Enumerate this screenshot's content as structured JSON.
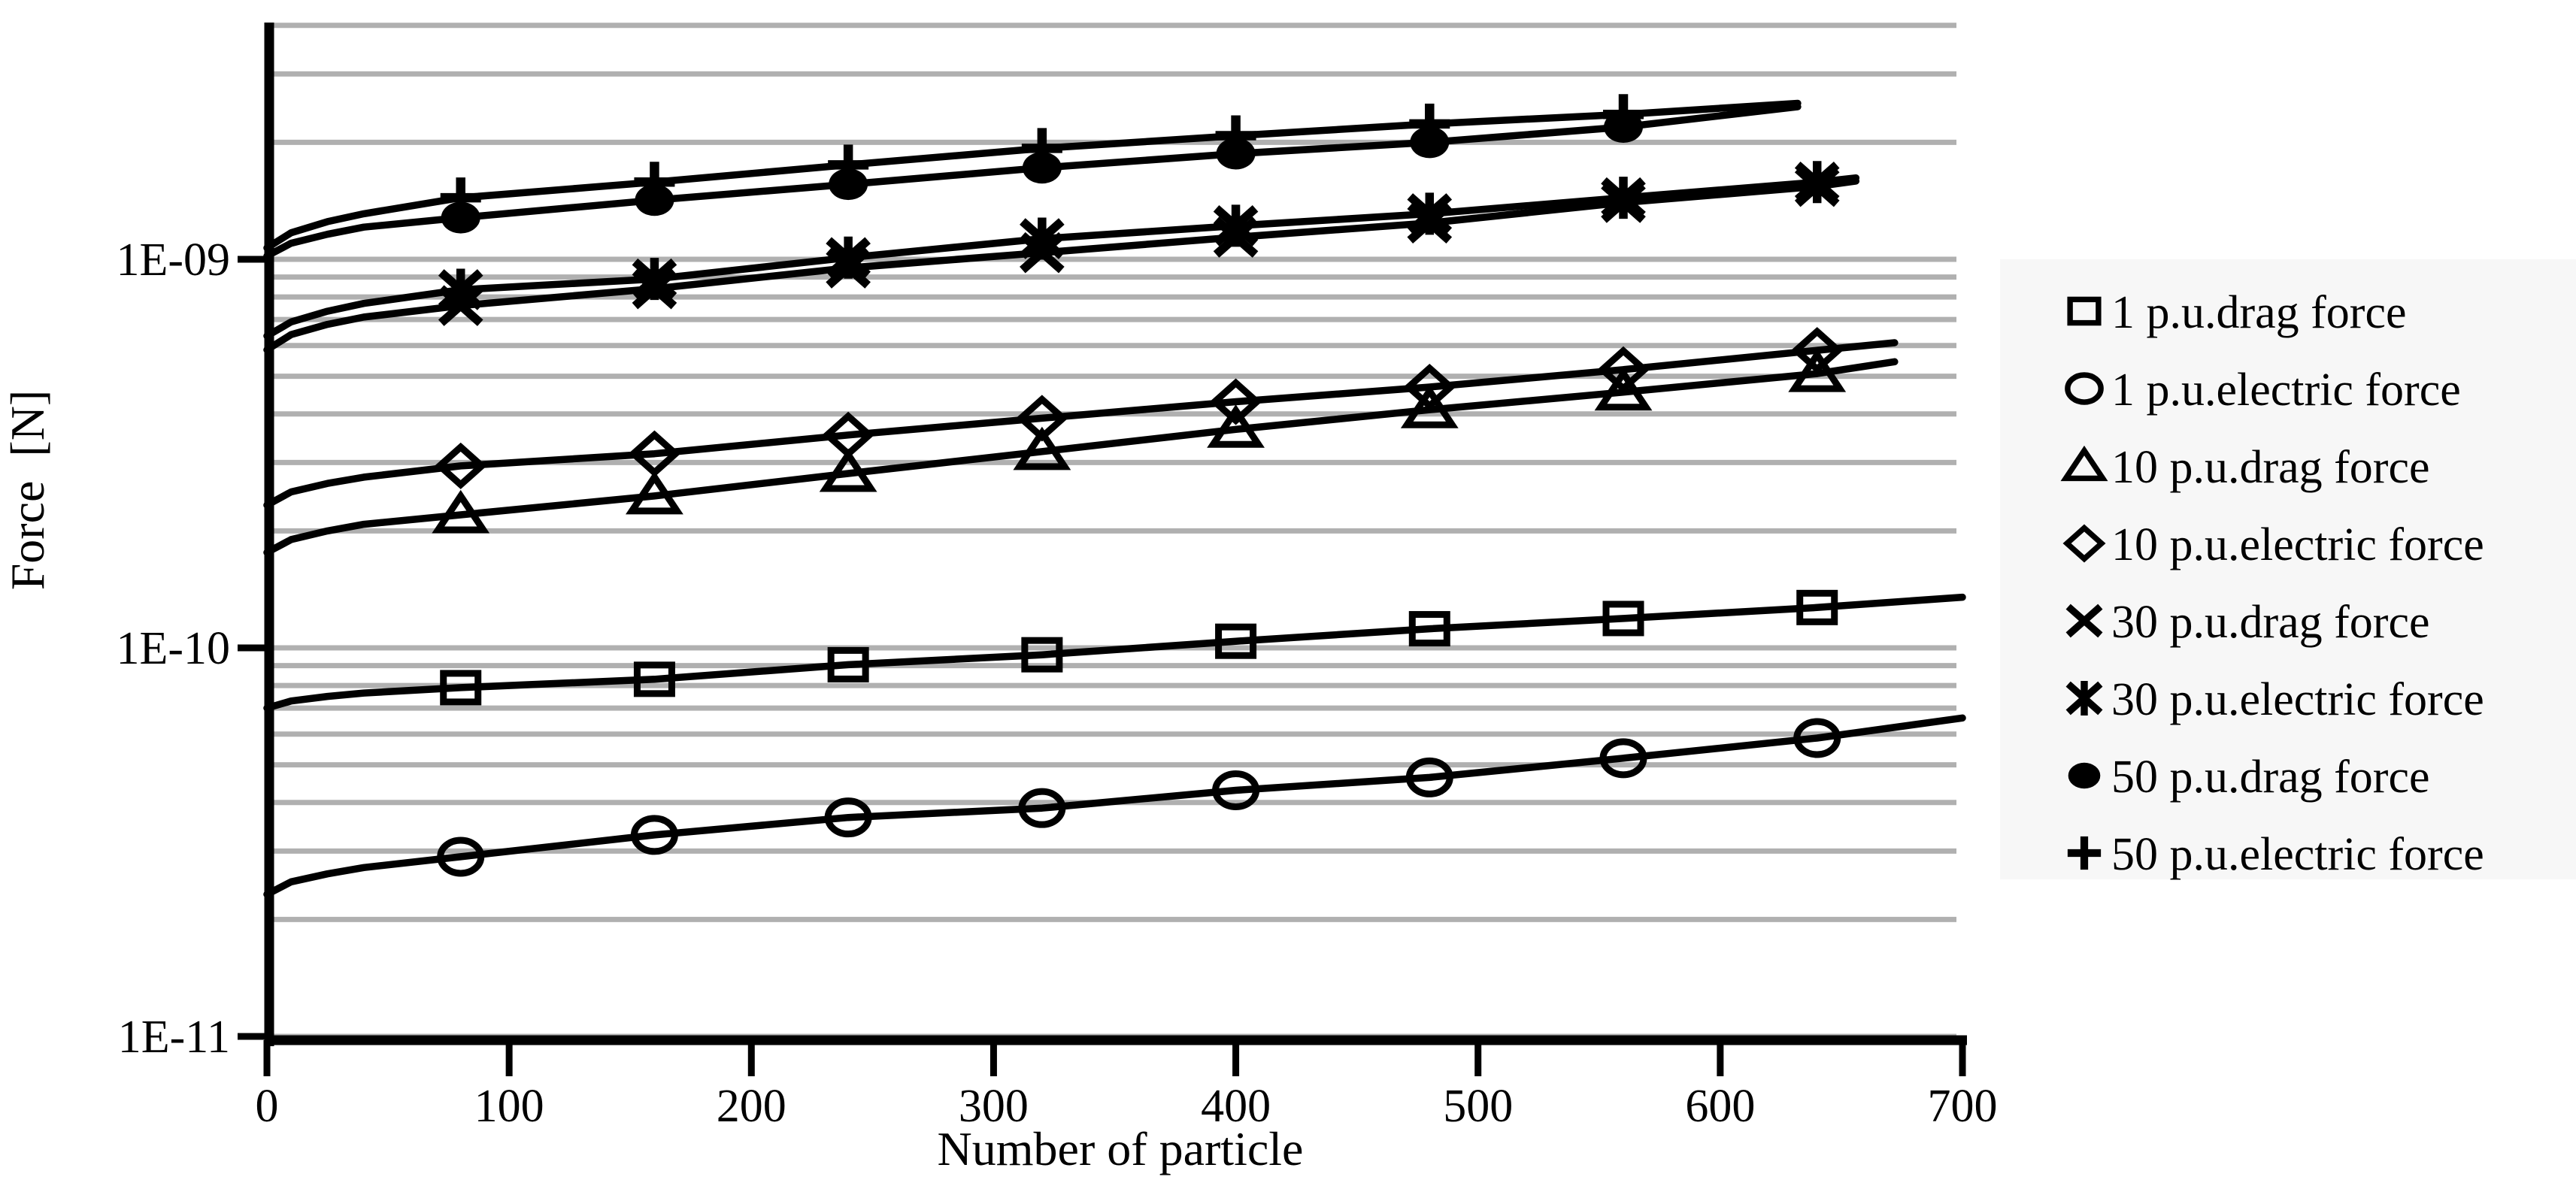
{
  "colors": {
    "background": "#ffffff",
    "line": "#000000",
    "grid": "#b0b0b0",
    "axis": "#000000",
    "text": "#000000",
    "legend_bg": "#f7f7f7"
  },
  "chart_data": {
    "type": "line",
    "title": "",
    "xlabel": "Number of particle",
    "ylabel": "Force  [N]",
    "x_axis": {
      "min": 0,
      "max": 700,
      "tick_step": 100,
      "tick_labels": [
        "0",
        "100",
        "200",
        "300",
        "400",
        "500",
        "600",
        "700"
      ]
    },
    "y_axis": {
      "scale": "log",
      "min": 1e-11,
      "max": 4.1e-09,
      "tick_labels": [
        "1E-09",
        "1E-10",
        "1E-11"
      ],
      "ticks": [
        {
          "label": "1E-09",
          "value": 1e-09
        },
        {
          "label": "1E-10",
          "value": 1e-10
        },
        {
          "label": "1E-11",
          "value": 1e-11
        }
      ],
      "minor_grid": true
    },
    "grid": "horizontal-log-minor",
    "legend_position": "right",
    "series": [
      {
        "name": "1 p.u.drag force",
        "marker": "square",
        "x": [
          0,
          10,
          25,
          40,
          80,
          160,
          240,
          320,
          400,
          480,
          560,
          640,
          700
        ],
        "y": [
          7e-11,
          7.3e-11,
          7.5e-11,
          7.65e-11,
          7.9e-11,
          8.3e-11,
          9.05e-11,
          9.6e-11,
          1.04e-10,
          1.12e-10,
          1.19e-10,
          1.27e-10,
          1.35e-10
        ],
        "marker_xs": [
          80,
          160,
          240,
          320,
          400,
          480,
          560,
          640
        ]
      },
      {
        "name": "1 p.u.electric force",
        "marker": "circle",
        "x": [
          0,
          10,
          25,
          40,
          80,
          160,
          240,
          320,
          400,
          480,
          560,
          640,
          700
        ],
        "y": [
          2.32e-11,
          2.5e-11,
          2.62e-11,
          2.72e-11,
          2.9e-11,
          3.3e-11,
          3.66e-11,
          3.87e-11,
          4.3e-11,
          4.64e-11,
          5.2e-11,
          5.86e-11,
          6.6e-11
        ],
        "marker_xs": [
          80,
          160,
          240,
          320,
          400,
          480,
          560,
          640
        ]
      },
      {
        "name": "10 p.u.drag force",
        "marker": "triangle",
        "x": [
          0,
          10,
          25,
          40,
          80,
          160,
          240,
          320,
          400,
          480,
          560,
          640,
          672
        ],
        "y": [
          1.76e-10,
          1.9e-10,
          2e-10,
          2.08e-10,
          2.2e-10,
          2.46e-10,
          2.81e-10,
          3.2e-10,
          3.65e-10,
          4.1e-10,
          4.55e-10,
          5.08e-10,
          5.45e-10
        ],
        "marker_xs": [
          80,
          160,
          240,
          320,
          400,
          480,
          560,
          640
        ]
      },
      {
        "name": "10 p.u.electric force",
        "marker": "diamond",
        "x": [
          0,
          10,
          25,
          40,
          80,
          160,
          240,
          320,
          400,
          480,
          560,
          640,
          672
        ],
        "y": [
          2.33e-10,
          2.52e-10,
          2.65e-10,
          2.75e-10,
          2.94e-10,
          3.16e-10,
          3.53e-10,
          3.9e-10,
          4.3e-10,
          4.69e-10,
          5.2e-10,
          5.83e-10,
          6.1e-10
        ],
        "marker_xs": [
          80,
          160,
          240,
          320,
          400,
          480,
          560,
          640
        ]
      },
      {
        "name": "30 p.u.drag force",
        "marker": "x",
        "x": [
          0,
          10,
          25,
          40,
          80,
          160,
          240,
          320,
          400,
          480,
          560,
          640,
          656
        ],
        "y": [
          5.85e-10,
          6.4e-10,
          6.8e-10,
          7.1e-10,
          7.6e-10,
          8.4e-10,
          9.5e-10,
          1.04e-09,
          1.14e-09,
          1.24e-09,
          1.4e-09,
          1.54e-09,
          1.59e-09
        ],
        "marker_xs": [
          80,
          160,
          240,
          320,
          400,
          480,
          560,
          640
        ]
      },
      {
        "name": "30 p.u.electric force",
        "marker": "star",
        "x": [
          0,
          10,
          25,
          40,
          80,
          160,
          240,
          320,
          400,
          480,
          560,
          640,
          656
        ],
        "y": [
          6.35e-10,
          6.9e-10,
          7.35e-10,
          7.7e-10,
          8.35e-10,
          8.9e-10,
          1.01e-09,
          1.13e-09,
          1.22e-09,
          1.31e-09,
          1.44e-09,
          1.58e-09,
          1.62e-09
        ],
        "marker_xs": [
          80,
          160,
          240,
          320,
          400,
          480,
          560,
          640
        ]
      },
      {
        "name": "50 p.u.drag force",
        "marker": "dot",
        "x": [
          0,
          10,
          25,
          40,
          80,
          160,
          240,
          320,
          400,
          480,
          560,
          632
        ],
        "y": [
          1.02e-09,
          1.1e-09,
          1.16e-09,
          1.21e-09,
          1.28e-09,
          1.42e-09,
          1.56e-09,
          1.72e-09,
          1.87e-09,
          2e-09,
          2.19e-09,
          2.47e-09
        ],
        "marker_xs": [
          80,
          160,
          240,
          320,
          400,
          480,
          560
        ]
      },
      {
        "name": "50 p.u.electric force",
        "marker": "plus",
        "x": [
          0,
          10,
          25,
          40,
          80,
          160,
          240,
          320,
          400,
          480,
          560,
          632
        ],
        "y": [
          1.07e-09,
          1.17e-09,
          1.25e-09,
          1.31e-09,
          1.44e-09,
          1.58e-09,
          1.75e-09,
          1.93e-09,
          2.08e-09,
          2.23e-09,
          2.36e-09,
          2.52e-09
        ],
        "marker_xs": [
          80,
          160,
          240,
          320,
          400,
          480,
          560
        ]
      }
    ],
    "legend": [
      {
        "marker": "square",
        "label": "1 p.u.drag force"
      },
      {
        "marker": "circle",
        "label": "1 p.u.electric force"
      },
      {
        "marker": "triangle",
        "label": "10 p.u.drag force"
      },
      {
        "marker": "diamond",
        "label": "10 p.u.electric force"
      },
      {
        "marker": "x",
        "label": "30 p.u.drag force"
      },
      {
        "marker": "star",
        "label": "30 p.u.electric force"
      },
      {
        "marker": "dot",
        "label": "50 p.u.drag force"
      },
      {
        "marker": "plus",
        "label": "50 p.u.electric force"
      }
    ]
  }
}
